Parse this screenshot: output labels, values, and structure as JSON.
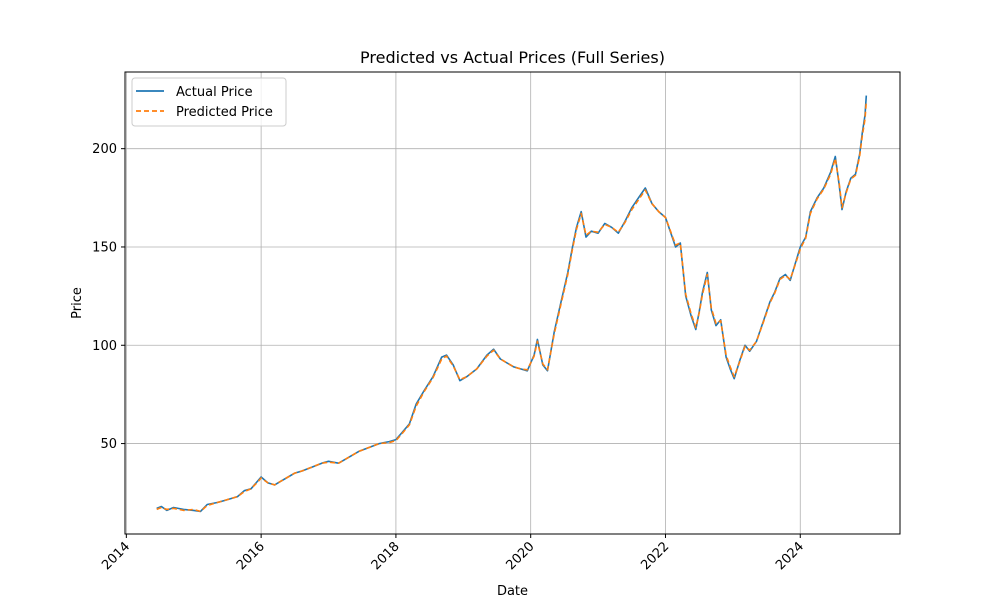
{
  "chart_data": {
    "type": "line",
    "title": "Predicted vs Actual Prices (Full Series)",
    "xlabel": "Date",
    "ylabel": "Price",
    "x_ticks": [
      "2014",
      "2016",
      "2018",
      "2020",
      "2022",
      "2024"
    ],
    "y_ticks": [
      50,
      100,
      150,
      200
    ],
    "xlim": [
      2013.98,
      2025.48
    ],
    "ylim": [
      4,
      239
    ],
    "grid": true,
    "legend_position": "top-left",
    "series": [
      {
        "name": "Actual Price",
        "color": "#1f77b4",
        "style": "solid",
        "points": [
          [
            2014.45,
            17
          ],
          [
            2014.52,
            18
          ],
          [
            2014.6,
            16
          ],
          [
            2014.7,
            17.5
          ],
          [
            2014.85,
            16.5
          ],
          [
            2015.0,
            16
          ],
          [
            2015.1,
            15.5
          ],
          [
            2015.2,
            19
          ],
          [
            2015.35,
            20
          ],
          [
            2015.45,
            21
          ],
          [
            2015.55,
            22
          ],
          [
            2015.65,
            23
          ],
          [
            2015.75,
            26
          ],
          [
            2015.85,
            27
          ],
          [
            2015.95,
            31
          ],
          [
            2016.0,
            33
          ],
          [
            2016.1,
            30
          ],
          [
            2016.2,
            29
          ],
          [
            2016.3,
            31
          ],
          [
            2016.4,
            33
          ],
          [
            2016.5,
            35
          ],
          [
            2016.6,
            36
          ],
          [
            2016.75,
            38
          ],
          [
            2016.9,
            40
          ],
          [
            2017.0,
            41
          ],
          [
            2017.15,
            40
          ],
          [
            2017.3,
            43
          ],
          [
            2017.45,
            46
          ],
          [
            2017.6,
            48
          ],
          [
            2017.75,
            50
          ],
          [
            2017.9,
            51
          ],
          [
            2018.0,
            52
          ],
          [
            2018.1,
            56
          ],
          [
            2018.2,
            60
          ],
          [
            2018.3,
            70
          ],
          [
            2018.42,
            77
          ],
          [
            2018.55,
            84
          ],
          [
            2018.68,
            94
          ],
          [
            2018.75,
            95
          ],
          [
            2018.85,
            90
          ],
          [
            2018.95,
            82
          ],
          [
            2019.05,
            84
          ],
          [
            2019.2,
            88
          ],
          [
            2019.35,
            95
          ],
          [
            2019.45,
            98
          ],
          [
            2019.55,
            93
          ],
          [
            2019.65,
            91
          ],
          [
            2019.75,
            89
          ],
          [
            2019.85,
            88
          ],
          [
            2019.95,
            87
          ],
          [
            2020.05,
            95
          ],
          [
            2020.1,
            103
          ],
          [
            2020.18,
            90
          ],
          [
            2020.25,
            87
          ],
          [
            2020.35,
            107
          ],
          [
            2020.45,
            122
          ],
          [
            2020.55,
            137
          ],
          [
            2020.62,
            150
          ],
          [
            2020.68,
            160
          ],
          [
            2020.75,
            168
          ],
          [
            2020.82,
            155
          ],
          [
            2020.9,
            158
          ],
          [
            2021.0,
            157
          ],
          [
            2021.1,
            162
          ],
          [
            2021.2,
            160
          ],
          [
            2021.3,
            157
          ],
          [
            2021.4,
            163
          ],
          [
            2021.5,
            170
          ],
          [
            2021.6,
            175
          ],
          [
            2021.7,
            180
          ],
          [
            2021.8,
            172
          ],
          [
            2021.9,
            168
          ],
          [
            2022.0,
            165
          ],
          [
            2022.08,
            157
          ],
          [
            2022.15,
            150
          ],
          [
            2022.22,
            152
          ],
          [
            2022.3,
            125
          ],
          [
            2022.38,
            115
          ],
          [
            2022.45,
            108
          ],
          [
            2022.5,
            117
          ],
          [
            2022.55,
            127
          ],
          [
            2022.62,
            137
          ],
          [
            2022.68,
            118
          ],
          [
            2022.75,
            110
          ],
          [
            2022.82,
            113
          ],
          [
            2022.9,
            94
          ],
          [
            2022.96,
            88
          ],
          [
            2023.02,
            83
          ],
          [
            2023.1,
            92
          ],
          [
            2023.18,
            100
          ],
          [
            2023.25,
            97
          ],
          [
            2023.35,
            102
          ],
          [
            2023.45,
            112
          ],
          [
            2023.55,
            122
          ],
          [
            2023.62,
            127
          ],
          [
            2023.7,
            134
          ],
          [
            2023.78,
            136
          ],
          [
            2023.85,
            133
          ],
          [
            2023.92,
            141
          ],
          [
            2024.0,
            150
          ],
          [
            2024.08,
            155
          ],
          [
            2024.15,
            168
          ],
          [
            2024.25,
            175
          ],
          [
            2024.35,
            180
          ],
          [
            2024.45,
            188
          ],
          [
            2024.52,
            196
          ],
          [
            2024.58,
            181
          ],
          [
            2024.62,
            169
          ],
          [
            2024.68,
            178
          ],
          [
            2024.75,
            185
          ],
          [
            2024.82,
            187
          ],
          [
            2024.88,
            197
          ],
          [
            2024.92,
            208
          ],
          [
            2024.96,
            217
          ],
          [
            2024.98,
            227
          ]
        ]
      },
      {
        "name": "Predicted Price",
        "color": "#ff7f0e",
        "style": "dashed",
        "points": [
          [
            2014.45,
            16.5
          ],
          [
            2014.52,
            17.5
          ],
          [
            2014.6,
            16.5
          ],
          [
            2014.7,
            17
          ],
          [
            2014.85,
            16
          ],
          [
            2015.0,
            16.5
          ],
          [
            2015.1,
            15.5
          ],
          [
            2015.2,
            18.5
          ],
          [
            2015.35,
            20
          ],
          [
            2015.45,
            21
          ],
          [
            2015.55,
            22
          ],
          [
            2015.65,
            23
          ],
          [
            2015.75,
            25.5
          ],
          [
            2015.85,
            27
          ],
          [
            2015.95,
            30.5
          ],
          [
            2016.0,
            32.5
          ],
          [
            2016.1,
            30
          ],
          [
            2016.2,
            29
          ],
          [
            2016.3,
            31
          ],
          [
            2016.4,
            33
          ],
          [
            2016.5,
            35
          ],
          [
            2016.6,
            36
          ],
          [
            2016.75,
            38
          ],
          [
            2016.9,
            40
          ],
          [
            2017.0,
            40.5
          ],
          [
            2017.15,
            40
          ],
          [
            2017.3,
            43
          ],
          [
            2017.45,
            46
          ],
          [
            2017.6,
            48
          ],
          [
            2017.75,
            50
          ],
          [
            2017.9,
            50.5
          ],
          [
            2018.0,
            51.5
          ],
          [
            2018.1,
            55.5
          ],
          [
            2018.2,
            59.5
          ],
          [
            2018.3,
            69
          ],
          [
            2018.42,
            76.5
          ],
          [
            2018.55,
            83.5
          ],
          [
            2018.68,
            93
          ],
          [
            2018.75,
            94.5
          ],
          [
            2018.85,
            89.5
          ],
          [
            2018.95,
            82.5
          ],
          [
            2019.05,
            84
          ],
          [
            2019.2,
            88
          ],
          [
            2019.35,
            94.5
          ],
          [
            2019.45,
            97.5
          ],
          [
            2019.55,
            93
          ],
          [
            2019.65,
            91
          ],
          [
            2019.75,
            89
          ],
          [
            2019.85,
            88
          ],
          [
            2019.95,
            87.5
          ],
          [
            2020.05,
            94.5
          ],
          [
            2020.1,
            102
          ],
          [
            2020.18,
            90.5
          ],
          [
            2020.25,
            87.5
          ],
          [
            2020.35,
            106
          ],
          [
            2020.45,
            121
          ],
          [
            2020.55,
            136
          ],
          [
            2020.62,
            149
          ],
          [
            2020.68,
            159
          ],
          [
            2020.75,
            167
          ],
          [
            2020.82,
            156
          ],
          [
            2020.9,
            158
          ],
          [
            2021.0,
            157.5
          ],
          [
            2021.1,
            161.5
          ],
          [
            2021.2,
            160
          ],
          [
            2021.3,
            157.5
          ],
          [
            2021.4,
            162.5
          ],
          [
            2021.5,
            169
          ],
          [
            2021.6,
            174
          ],
          [
            2021.7,
            179
          ],
          [
            2021.8,
            172
          ],
          [
            2021.9,
            168
          ],
          [
            2022.0,
            165
          ],
          [
            2022.08,
            157.5
          ],
          [
            2022.15,
            151
          ],
          [
            2022.22,
            152
          ],
          [
            2022.3,
            126
          ],
          [
            2022.38,
            116
          ],
          [
            2022.45,
            109
          ],
          [
            2022.5,
            116.5
          ],
          [
            2022.55,
            126
          ],
          [
            2022.62,
            136
          ],
          [
            2022.68,
            119
          ],
          [
            2022.75,
            111
          ],
          [
            2022.82,
            112.5
          ],
          [
            2022.9,
            95
          ],
          [
            2022.96,
            89
          ],
          [
            2023.02,
            84
          ],
          [
            2023.1,
            91.5
          ],
          [
            2023.18,
            99.5
          ],
          [
            2023.25,
            97.5
          ],
          [
            2023.35,
            102
          ],
          [
            2023.45,
            111.5
          ],
          [
            2023.55,
            121.5
          ],
          [
            2023.62,
            126.5
          ],
          [
            2023.7,
            133.5
          ],
          [
            2023.78,
            135.5
          ],
          [
            2023.85,
            133.5
          ],
          [
            2023.92,
            140.5
          ],
          [
            2024.0,
            149
          ],
          [
            2024.08,
            154.5
          ],
          [
            2024.15,
            167
          ],
          [
            2024.25,
            174.5
          ],
          [
            2024.35,
            179.5
          ],
          [
            2024.45,
            187
          ],
          [
            2024.52,
            195
          ],
          [
            2024.58,
            182
          ],
          [
            2024.62,
            170
          ],
          [
            2024.68,
            177.5
          ],
          [
            2024.75,
            184.5
          ],
          [
            2024.82,
            186.5
          ],
          [
            2024.88,
            196
          ],
          [
            2024.92,
            206.5
          ],
          [
            2024.96,
            215
          ],
          [
            2024.98,
            224
          ]
        ]
      }
    ]
  }
}
